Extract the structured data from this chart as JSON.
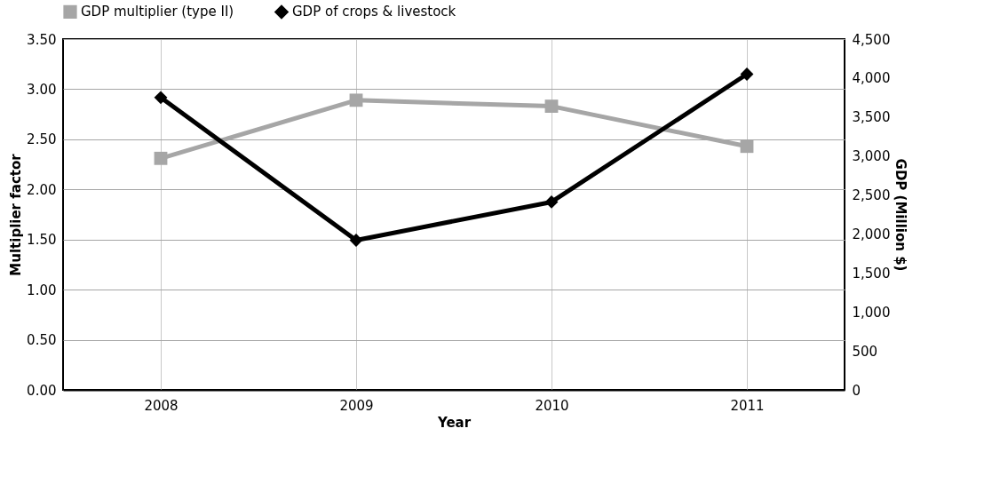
{
  "chart_data": {
    "type": "line",
    "xlabel": "Year",
    "ylabel": "Multiplier factor",
    "y2label": "GDP (Million $)",
    "categories": [
      "2008",
      "2009",
      "2010",
      "2011"
    ],
    "series": [
      {
        "name": "GDP multiplier (type II)",
        "color": "#a6a6a6",
        "marker": "square",
        "axis": "y",
        "values": [
          2.31,
          2.89,
          2.83,
          2.43
        ]
      },
      {
        "name": "GDP of crops & livestock",
        "color": "#000000",
        "marker": "diamond",
        "axis": "y2",
        "values": [
          3750,
          1920,
          2410,
          4050
        ]
      }
    ],
    "ylim": [
      0,
      3.5
    ],
    "yticks": [
      {
        "value": 0,
        "label": "0.00"
      },
      {
        "value": 0.5,
        "label": "0.50"
      },
      {
        "value": 1,
        "label": "1.00"
      },
      {
        "value": 1.5,
        "label": "1.50"
      },
      {
        "value": 2,
        "label": "2.00"
      },
      {
        "value": 2.5,
        "label": "2.50"
      },
      {
        "value": 3,
        "label": "3.00"
      },
      {
        "value": 3.5,
        "label": "3.50"
      }
    ],
    "y2lim": [
      0,
      4500
    ],
    "y2ticks": [
      0,
      500,
      {
        "value": 1000,
        "label": "1,000"
      },
      {
        "value": 1500,
        "label": "1,500"
      },
      {
        "value": 2000,
        "label": "2,000"
      },
      {
        "value": 2500,
        "label": "2,500"
      },
      {
        "value": 3000,
        "label": "3,000"
      },
      {
        "value": 3500,
        "label": "3,500"
      },
      {
        "value": 4000,
        "label": "4,000"
      },
      {
        "value": 4500,
        "label": "4,500"
      }
    ],
    "grid": true,
    "legend": "top",
    "line_style": "solid"
  }
}
